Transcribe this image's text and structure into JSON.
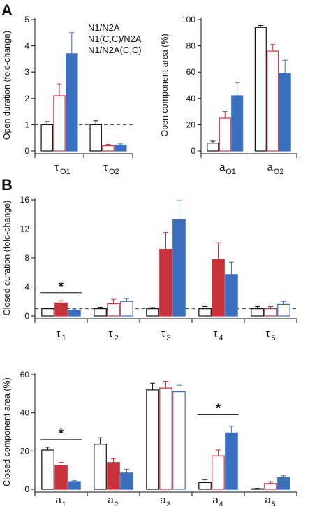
{
  "panel_labels": [
    "A",
    "B"
  ],
  "legend": [
    {
      "label": "N1/N2A",
      "color": "#111111"
    },
    {
      "label": "N1(C,C)/N2A",
      "color": "#c8323c"
    },
    {
      "label": "N1/N2A(C,C)",
      "color": "#3a6fc0"
    }
  ],
  "colors": {
    "red": "#c8323c",
    "blue": "#3a6fc0",
    "black": "#111111"
  },
  "chart_data": [
    {
      "type": "bar",
      "ylabel": "Open duration (fold-change)",
      "ylim": [
        0,
        5
      ],
      "yticks": [
        0,
        1,
        2,
        3,
        4,
        5
      ],
      "categories": [
        "τO1",
        "τO2"
      ],
      "category_labels": [
        {
          "main": "τ",
          "sub": "O1"
        },
        {
          "main": "τ",
          "sub": "O2"
        }
      ],
      "reference_line": 1,
      "series": [
        {
          "name": "N1/N2A",
          "values": [
            1.0,
            1.0
          ],
          "errors": [
            0.12,
            0.15
          ],
          "style": "open-black"
        },
        {
          "name": "N1(C,C)/N2A",
          "values": [
            2.1,
            0.2
          ],
          "errors": [
            0.45,
            0.05
          ],
          "style": "open-red"
        },
        {
          "name": "N1/N2A(C,C)",
          "values": [
            3.7,
            0.22
          ],
          "errors": [
            0.8,
            0.05
          ],
          "style": "filled-blue"
        }
      ]
    },
    {
      "type": "bar",
      "ylabel": "Open component area (%)",
      "ylim": [
        0,
        100
      ],
      "yticks": [
        0,
        20,
        40,
        60,
        80,
        100
      ],
      "categories": [
        "aO1",
        "aO2"
      ],
      "category_labels": [
        {
          "main": "a",
          "sub": "O1"
        },
        {
          "main": "a",
          "sub": "O2"
        }
      ],
      "series": [
        {
          "name": "N1/N2A",
          "values": [
            6,
            94
          ],
          "errors": [
            1.5,
            1.5
          ],
          "style": "open-black"
        },
        {
          "name": "N1(C,C)/N2A",
          "values": [
            25,
            76
          ],
          "errors": [
            5,
            5
          ],
          "style": "open-red"
        },
        {
          "name": "N1/N2A(C,C)",
          "values": [
            42,
            59
          ],
          "errors": [
            10,
            10
          ],
          "style": "filled-blue"
        }
      ]
    },
    {
      "type": "bar",
      "ylabel": "Closed duration (fold-change)",
      "ylim": [
        0,
        16
      ],
      "yticks": [
        0,
        4,
        8,
        12,
        16
      ],
      "categories": [
        "τ1",
        "τ2",
        "τ3",
        "τ4",
        "τ5"
      ],
      "category_labels": [
        {
          "main": "τ",
          "sub": "1"
        },
        {
          "main": "τ",
          "sub": "2"
        },
        {
          "main": "τ",
          "sub": "3"
        },
        {
          "main": "τ",
          "sub": "4"
        },
        {
          "main": "τ",
          "sub": "5"
        }
      ],
      "reference_line": 1,
      "significance": [
        {
          "category_index": 0,
          "label": "*",
          "y": 3.2
        }
      ],
      "series": [
        {
          "name": "N1/N2A",
          "values": [
            1.0,
            1.0,
            1.0,
            1.0,
            1.0
          ],
          "errors": [
            0.1,
            0.2,
            0.15,
            0.3,
            0.3
          ],
          "styles": [
            "open-black",
            "open-black",
            "open-black",
            "open-black",
            "open-black"
          ]
        },
        {
          "name": "N1(C,C)/N2A",
          "values": [
            1.8,
            1.7,
            9.2,
            7.8,
            1.0
          ],
          "errors": [
            0.3,
            0.6,
            2.3,
            2.3,
            0.3
          ],
          "styles": [
            "filled-red",
            "open-red",
            "filled-red",
            "filled-red",
            "open-red"
          ]
        },
        {
          "name": "N1/N2A(C,C)",
          "values": [
            0.8,
            2.0,
            13.3,
            5.7,
            1.6
          ],
          "errors": [
            0.15,
            0.4,
            2.6,
            1.7,
            0.4
          ],
          "styles": [
            "filled-blue",
            "open-blue",
            "filled-blue",
            "filled-blue",
            "open-blue"
          ]
        }
      ]
    },
    {
      "type": "bar",
      "ylabel": "Closed component area (%)",
      "ylim": [
        0,
        60
      ],
      "yticks": [
        0,
        20,
        40,
        60
      ],
      "categories": [
        "a1",
        "a2",
        "a3",
        "a4",
        "a5"
      ],
      "category_labels": [
        {
          "main": "a",
          "sub": "1"
        },
        {
          "main": "a",
          "sub": "2"
        },
        {
          "main": "a",
          "sub": "3"
        },
        {
          "main": "a",
          "sub": "4"
        },
        {
          "main": "a",
          "sub": "5"
        }
      ],
      "significance": [
        {
          "category_index": 0,
          "label": "*",
          "y": 26
        },
        {
          "category_index": 3,
          "label": "*",
          "y": 39
        }
      ],
      "series": [
        {
          "name": "N1/N2A",
          "values": [
            20.5,
            23.5,
            52,
            3.5,
            0.3
          ],
          "errors": [
            1.5,
            3.5,
            3.5,
            1.5,
            0.2
          ],
          "styles": [
            "open-black",
            "open-black",
            "open-black",
            "open-black",
            "open-black"
          ]
        },
        {
          "name": "N1(C,C)/N2A",
          "values": [
            12.5,
            14,
            53,
            17.5,
            3
          ],
          "errors": [
            1.5,
            2,
            3.5,
            3,
            1
          ],
          "styles": [
            "filled-red",
            "filled-red",
            "open-red",
            "open-red",
            "open-red"
          ]
        },
        {
          "name": "N1/N2A(C,C)",
          "values": [
            4,
            8.5,
            51,
            29.5,
            6
          ],
          "errors": [
            0.5,
            2,
            3.5,
            3.5,
            1
          ],
          "styles": [
            "filled-blue",
            "filled-blue",
            "open-blue",
            "filled-blue",
            "filled-blue"
          ]
        }
      ]
    }
  ]
}
